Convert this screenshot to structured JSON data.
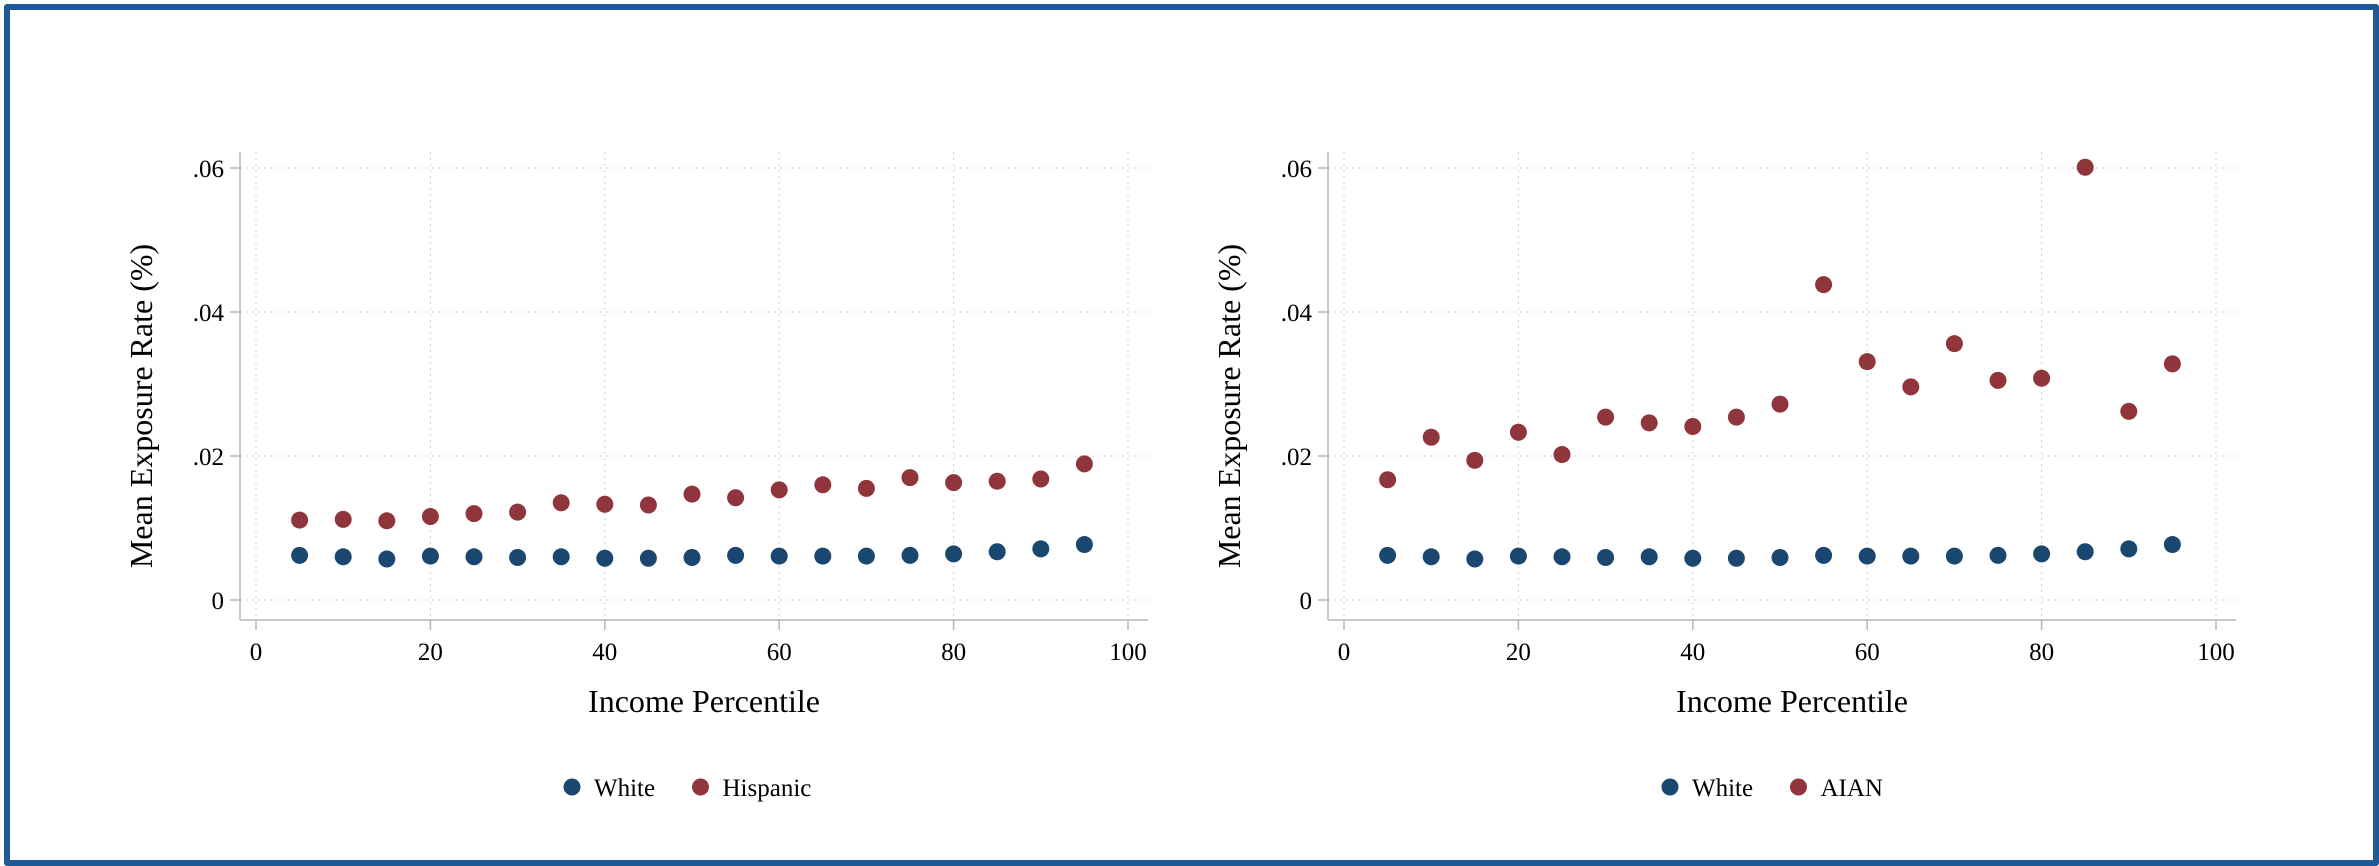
{
  "colors": {
    "frame": "#1f5a96",
    "white_series": "#1a476f",
    "other_series": "#90353b"
  },
  "chart_data": [
    {
      "type": "scatter",
      "title": "",
      "xlabel": "Income Percentile",
      "ylabel": "Mean Exposure Rate (%)",
      "xlim": [
        0,
        100
      ],
      "ylim": [
        0,
        0.06
      ],
      "xticks": [
        0,
        20,
        40,
        60,
        80,
        100
      ],
      "xtick_labels": [
        "0",
        "20",
        "40",
        "60",
        "80",
        "100"
      ],
      "yticks": [
        0,
        0.02,
        0.04,
        0.06
      ],
      "ytick_labels": [
        "0",
        ".02",
        ".04",
        ".06"
      ],
      "grid": true,
      "legend_position": "bottom",
      "x": [
        5,
        10,
        15,
        20,
        25,
        30,
        35,
        40,
        45,
        50,
        55,
        60,
        65,
        70,
        75,
        80,
        85,
        90,
        95
      ],
      "series": [
        {
          "name": "White",
          "color": "#1a476f",
          "values": [
            0.0062,
            0.006,
            0.0057,
            0.0061,
            0.006,
            0.0059,
            0.006,
            0.0058,
            0.0058,
            0.0059,
            0.0062,
            0.0061,
            0.0061,
            0.0061,
            0.0062,
            0.0064,
            0.0067,
            0.0071,
            0.0077
          ]
        },
        {
          "name": "Hispanic",
          "color": "#90353b",
          "values": [
            0.0111,
            0.0112,
            0.011,
            0.0116,
            0.012,
            0.0122,
            0.0135,
            0.0133,
            0.0132,
            0.0147,
            0.0142,
            0.0153,
            0.016,
            0.0155,
            0.017,
            0.0163,
            0.0165,
            0.0168,
            0.0189
          ]
        }
      ]
    },
    {
      "type": "scatter",
      "title": "",
      "xlabel": "Income Percentile",
      "ylabel": "Mean Exposure Rate (%)",
      "xlim": [
        0,
        100
      ],
      "ylim": [
        0,
        0.06
      ],
      "xticks": [
        0,
        20,
        40,
        60,
        80,
        100
      ],
      "xtick_labels": [
        "0",
        "20",
        "40",
        "60",
        "80",
        "100"
      ],
      "yticks": [
        0,
        0.02,
        0.04,
        0.06
      ],
      "ytick_labels": [
        "0",
        ".02",
        ".04",
        ".06"
      ],
      "grid": true,
      "legend_position": "bottom",
      "x": [
        5,
        10,
        15,
        20,
        25,
        30,
        35,
        40,
        45,
        50,
        55,
        60,
        65,
        70,
        75,
        80,
        85,
        90,
        95
      ],
      "series": [
        {
          "name": "White",
          "color": "#1a476f",
          "values": [
            0.0062,
            0.006,
            0.0057,
            0.0061,
            0.006,
            0.0059,
            0.006,
            0.0058,
            0.0058,
            0.0059,
            0.0062,
            0.0061,
            0.0061,
            0.0061,
            0.0062,
            0.0064,
            0.0067,
            0.0071,
            0.0077
          ]
        },
        {
          "name": "AIAN",
          "color": "#90353b",
          "values": [
            0.0167,
            0.0226,
            0.0194,
            0.0233,
            0.0202,
            0.0254,
            0.0246,
            0.0241,
            0.0254,
            0.0272,
            0.0438,
            0.0331,
            0.0296,
            0.0356,
            0.0305,
            0.0308,
            0.0601,
            0.0262,
            0.0328
          ]
        }
      ]
    }
  ]
}
